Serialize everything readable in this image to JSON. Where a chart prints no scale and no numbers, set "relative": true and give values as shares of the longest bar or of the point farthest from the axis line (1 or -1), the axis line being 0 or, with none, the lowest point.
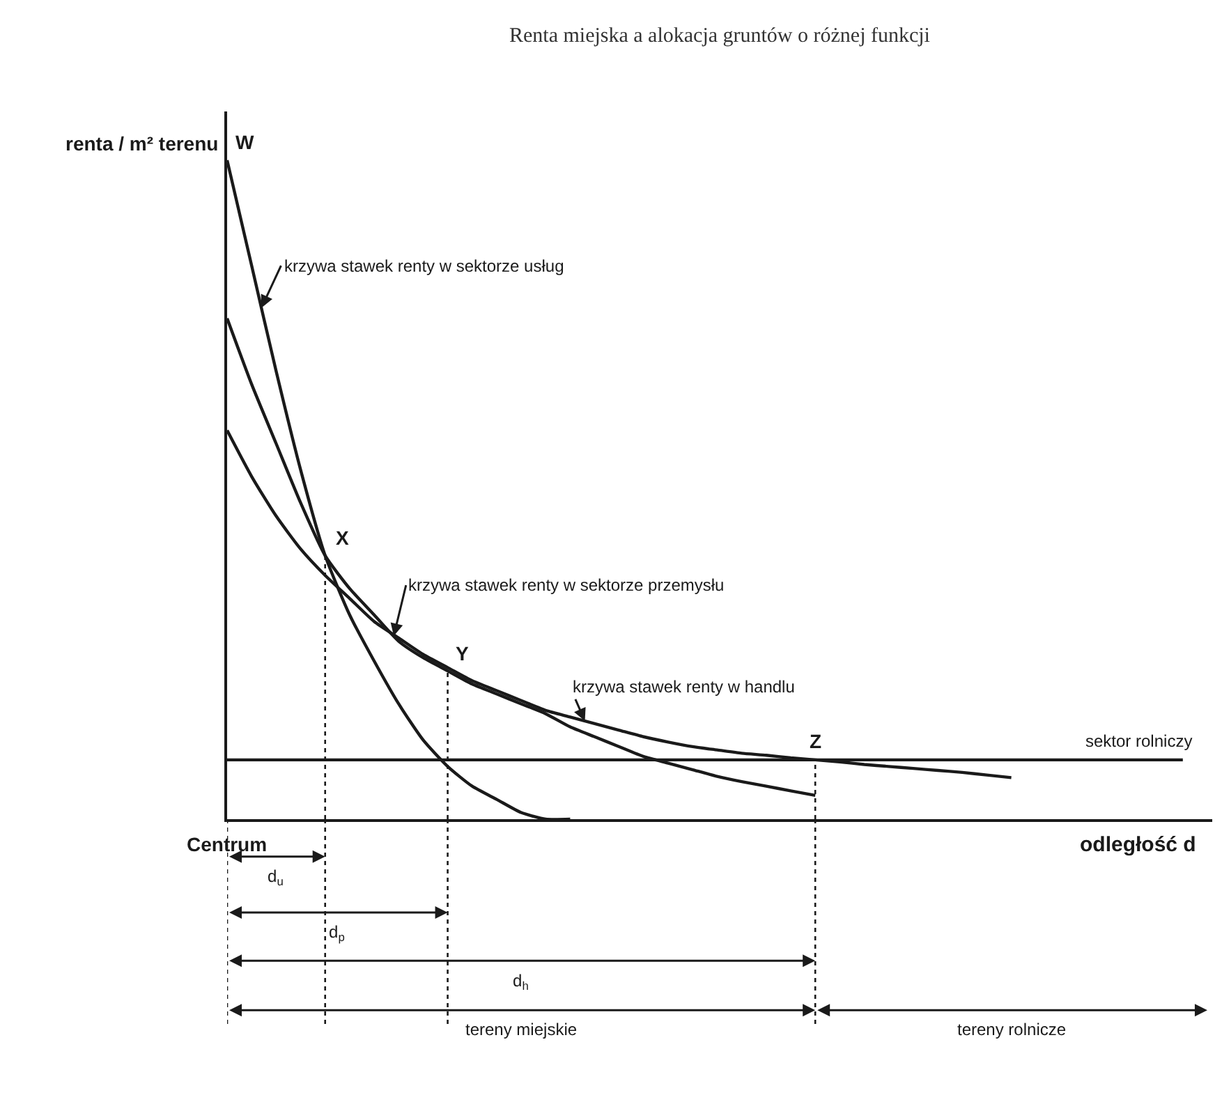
{
  "chart_data": {
    "type": "line",
    "title": "Renta miejska a alokacja gruntów o różnej funkcji",
    "xlabel": "odległość d",
    "ylabel": "renta / m² terenu",
    "relative": true,
    "legend": false,
    "marker": "none",
    "line_style": "solid",
    "categories": [
      null,
      null,
      null,
      null,
      null,
      null,
      null,
      null,
      null,
      null,
      null,
      null,
      null,
      null,
      null,
      null,
      null,
      null,
      null,
      null,
      null,
      null,
      null,
      null,
      null,
      null,
      null,
      null,
      null,
      null,
      null,
      null,
      null,
      null,
      null,
      null,
      null,
      null,
      null,
      null
    ],
    "series": [
      {
        "name": "krzywa stawek renty w sektorze usług",
        "color": "#1a1a1a",
        "values": [
          1.0,
          0.84,
          0.68,
          0.53,
          0.4,
          0.31,
          0.24,
          0.175,
          0.12,
          0.08,
          0.05,
          0.03,
          0.01,
          0.0,
          0.0,
          null,
          null,
          null,
          null,
          null,
          null,
          null,
          null,
          null,
          null,
          null,
          null,
          null,
          null,
          null,
          null,
          null,
          null,
          null,
          null,
          null,
          null,
          null,
          null,
          null
        ]
      },
      {
        "name": "krzywa stawek renty w sektorze przemysłu",
        "color": "#1a1a1a",
        "values": [
          0.76,
          0.66,
          0.57,
          0.48,
          0.4,
          0.35,
          0.31,
          0.27,
          0.245,
          0.225,
          0.205,
          0.19,
          0.175,
          0.16,
          0.14,
          0.125,
          0.11,
          0.095,
          0.085,
          0.075,
          0.065,
          0.057,
          0.05,
          0.043,
          0.036,
          null,
          null,
          null,
          null,
          null,
          null,
          null,
          null,
          null,
          null,
          null,
          null,
          null,
          null,
          null
        ]
      },
      {
        "name": "krzywa stawek renty w handlu",
        "color": "#1a1a1a",
        "values": [
          0.59,
          0.52,
          0.46,
          0.41,
          0.37,
          0.335,
          0.3,
          0.275,
          0.25,
          0.23,
          0.21,
          0.195,
          0.18,
          0.165,
          0.155,
          0.145,
          0.135,
          0.125,
          0.117,
          0.11,
          0.105,
          0.1,
          0.097,
          0.093,
          0.09,
          0.087,
          0.083,
          0.08,
          0.077,
          0.074,
          0.071,
          0.067,
          0.063,
          null,
          null,
          null,
          null,
          null,
          null,
          null
        ]
      },
      {
        "name": "sektor rolniczy",
        "color": "#1a1a1a",
        "values": [
          0.09,
          0.09,
          0.09,
          0.09,
          0.09,
          0.09,
          0.09,
          0.09,
          0.09,
          0.09,
          0.09,
          0.09,
          0.09,
          0.09,
          0.09,
          0.09,
          0.09,
          0.09,
          0.09,
          0.09,
          0.09,
          0.09,
          0.09,
          0.09,
          0.09,
          0.09,
          0.09,
          0.09,
          0.09,
          0.09,
          0.09,
          0.09,
          0.09,
          0.09,
          0.09,
          0.09,
          0.09,
          0.09,
          0.09,
          0.09
        ]
      }
    ],
    "annotations": [
      "W",
      "X",
      "Y",
      "Z",
      "Centrum",
      "d$_{u}$",
      "d$_{p}$",
      "d$_{h}$",
      "tereny miejskie",
      "tereny rolnicze"
    ]
  }
}
